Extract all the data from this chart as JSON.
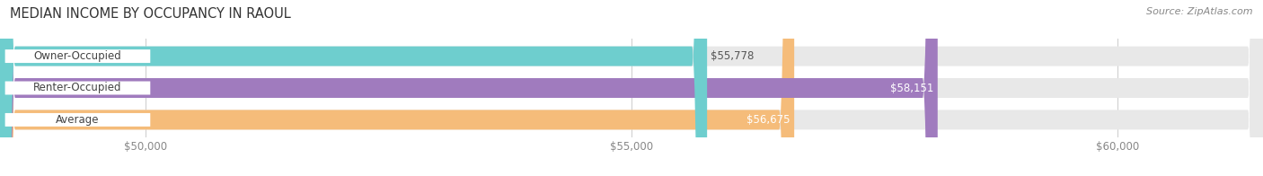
{
  "title": "MEDIAN INCOME BY OCCUPANCY IN RAOUL",
  "source": "Source: ZipAtlas.com",
  "categories": [
    "Owner-Occupied",
    "Renter-Occupied",
    "Average"
  ],
  "values": [
    55778,
    58151,
    56675
  ],
  "labels": [
    "$55,778",
    "$58,151",
    "$56,675"
  ],
  "bar_colors": [
    "#6ecece",
    "#a07bbe",
    "#f5bc7a"
  ],
  "bar_bg_color": "#e8e8e8",
  "label_colors": [
    "#555555",
    "#ffffff",
    "#ffffff"
  ],
  "xmin": 48500,
  "xmax": 61500,
  "xticks": [
    50000,
    55000,
    60000
  ],
  "xtick_labels": [
    "$50,000",
    "$55,000",
    "$60,000"
  ],
  "title_fontsize": 10.5,
  "source_fontsize": 8,
  "bar_label_fontsize": 8.5,
  "cat_label_fontsize": 8.5,
  "tick_fontsize": 8.5,
  "bar_height": 0.62,
  "background_color": "#ffffff",
  "fig_width": 14.06,
  "fig_height": 1.96
}
